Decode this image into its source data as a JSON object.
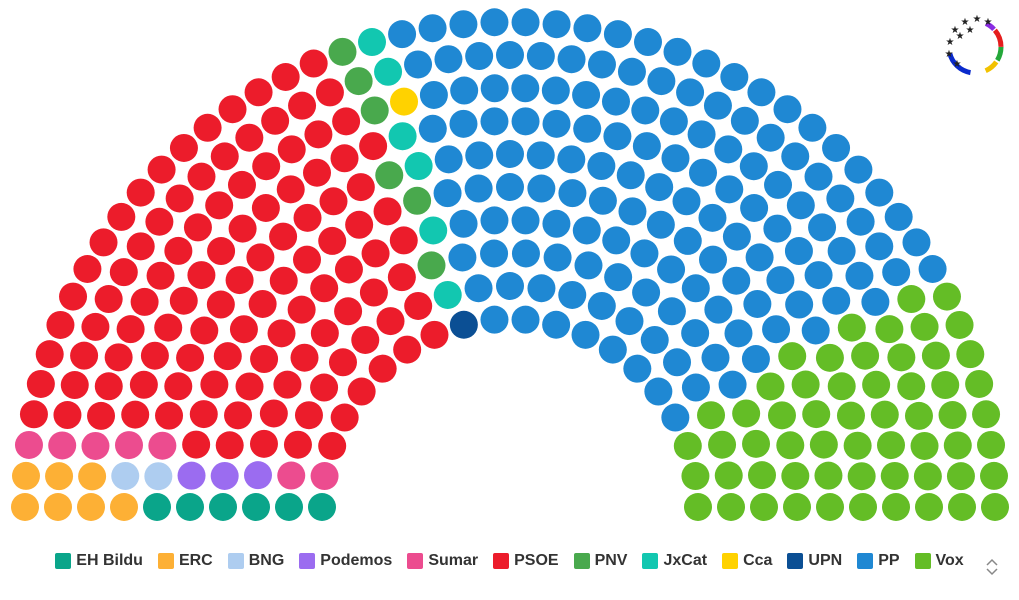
{
  "chart_data": {
    "type": "parliament",
    "categories": [
      "EH Bildu",
      "ERC",
      "BNG",
      "Podemos",
      "Sumar",
      "PSOE",
      "PNV",
      "JxCat",
      "Cca",
      "UPN",
      "PP",
      "Vox"
    ],
    "values": [
      6,
      7,
      2,
      3,
      7,
      111,
      6,
      6,
      1,
      1,
      142,
      58
    ],
    "colors": [
      "#0aa58a",
      "#fdb035",
      "#aecdf0",
      "#9b6cf0",
      "#ec4c8f",
      "#ec1c2b",
      "#49a94d",
      "#12c7b0",
      "#ffd200",
      "#0b4f94",
      "#1f88d3",
      "#64bd26"
    ]
  }
}
